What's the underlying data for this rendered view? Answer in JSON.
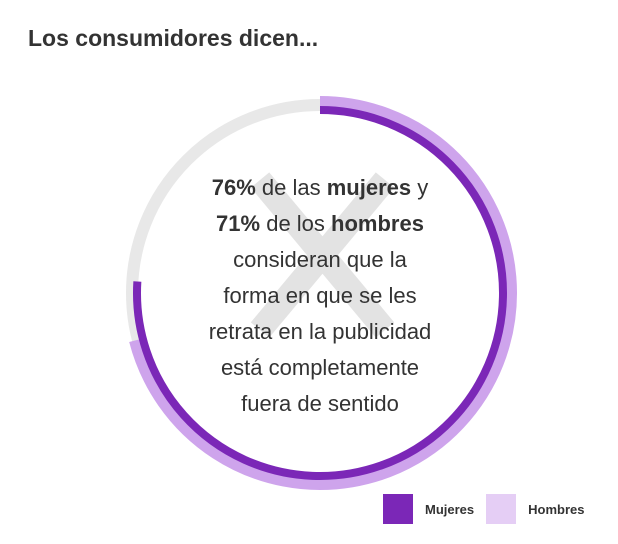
{
  "title": "Los consumidores dicen...",
  "center_text": {
    "women_pct": "76%",
    "women_middle": " de las ",
    "women_word": "mujeres",
    "women_end": " y",
    "men_pct": "71%",
    "men_middle": " de los ",
    "men_word": "hombres",
    "line3": "consideran que la",
    "line4": "forma en que se les",
    "line5": "retrata en la publicidad",
    "line6": "está completamente",
    "line7": "fuera de sentido"
  },
  "chart_data": {
    "type": "pie",
    "series": [
      {
        "name": "Mujeres",
        "value": 76,
        "color": "#7B27B7"
      },
      {
        "name": "Hombres",
        "value": 71,
        "color": "#CEA4EC"
      }
    ],
    "track_color": "#E8E8E8",
    "max": 100
  },
  "legend": [
    {
      "label": "Mujeres",
      "color": "#7B27B7"
    },
    {
      "label": "Hombres",
      "color": "#E5CEF5"
    }
  ],
  "watermark_color": "#E3E3E3"
}
